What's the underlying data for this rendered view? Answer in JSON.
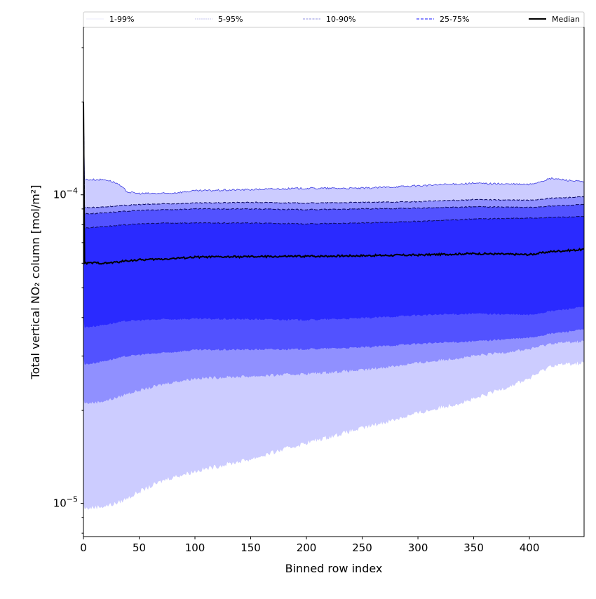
{
  "chart_data": {
    "type": "area",
    "title": "",
    "xlabel": "Binned row index",
    "ylabel": "Total vertical NO₂ column [mol/m²]",
    "xlim": [
      0,
      449
    ],
    "ylim": [
      7.8e-06,
      0.000349
    ],
    "yscale": "log",
    "grid": false,
    "legend_placement": "top (above axes, full width)",
    "x_ticks": [
      0,
      50,
      100,
      150,
      200,
      250,
      300,
      350,
      400
    ],
    "y_ticks": [
      {
        "value": 1e-05,
        "base": "10",
        "exp": "−5"
      },
      {
        "value": 0.0001,
        "base": "10",
        "exp": "−4"
      }
    ],
    "legend": [
      {
        "label": "1-99%",
        "color": "#d8d8f8"
      },
      {
        "label": "5-95%",
        "color": "#b0b0e8"
      },
      {
        "label": "10-90%",
        "color": "#9090e0"
      },
      {
        "label": "25-75%",
        "color": "#6060ff"
      },
      {
        "label": "Median",
        "color": "#000000"
      }
    ],
    "x": [
      0,
      1,
      10,
      20,
      30,
      40,
      50,
      75,
      100,
      150,
      200,
      250,
      300,
      350,
      400,
      420,
      449
    ],
    "series": [
      {
        "name": "p99",
        "values": [
          0.0002,
          0.000112,
          0.000112,
          0.000112,
          0.000109,
          0.000102,
          0.000101,
          0.000101,
          0.000103,
          0.000104,
          0.000105,
          0.000105,
          0.000107,
          0.000109,
          0.000108,
          0.000113,
          0.00011
        ]
      },
      {
        "name": "p95",
        "values": [
          0.0002,
          9.1e-05,
          9.1e-05,
          9.15e-05,
          9.2e-05,
          9.25e-05,
          9.3e-05,
          9.35e-05,
          9.4e-05,
          9.45e-05,
          9.4e-05,
          9.45e-05,
          9.5e-05,
          9.65e-05,
          9.6e-05,
          9.75e-05,
          9.85e-05
        ]
      },
      {
        "name": "p90",
        "values": [
          0.0002,
          8.68e-05,
          8.7e-05,
          8.75e-05,
          8.8e-05,
          8.85e-05,
          8.9e-05,
          8.95e-05,
          9e-05,
          9e-05,
          8.95e-05,
          9e-05,
          9.05e-05,
          9.15e-05,
          9.1e-05,
          9.2e-05,
          9.3e-05
        ]
      },
      {
        "name": "p75",
        "values": [
          0.0002,
          7.8e-05,
          7.85e-05,
          7.9e-05,
          7.95e-05,
          8e-05,
          8.05e-05,
          8.1e-05,
          8.1e-05,
          8.1e-05,
          8.05e-05,
          8.1e-05,
          8.2e-05,
          8.35e-05,
          8.4e-05,
          8.45e-05,
          8.5e-05
        ]
      },
      {
        "name": "median",
        "values": [
          0.0002,
          6e-05,
          6.02e-05,
          6e-05,
          6.05e-05,
          6.12e-05,
          6.15e-05,
          6.2e-05,
          6.28e-05,
          6.3e-05,
          6.32e-05,
          6.35e-05,
          6.38e-05,
          6.45e-05,
          6.4e-05,
          6.55e-05,
          6.65e-05
        ]
      },
      {
        "name": "p25",
        "values": [
          4e-05,
          3.72e-05,
          3.75e-05,
          3.8e-05,
          3.85e-05,
          3.9e-05,
          3.92e-05,
          3.95e-05,
          3.96e-05,
          3.95e-05,
          3.93e-05,
          3.98e-05,
          4.07e-05,
          4.12e-05,
          4.08e-05,
          4.2e-05,
          4.33e-05
        ]
      },
      {
        "name": "p10",
        "values": [
          3e-05,
          2.82e-05,
          2.85e-05,
          2.9e-05,
          2.95e-05,
          3e-05,
          3.03e-05,
          3.08e-05,
          3.14e-05,
          3.15e-05,
          3.16e-05,
          3.2e-05,
          3.29e-05,
          3.35e-05,
          3.44e-05,
          3.55e-05,
          3.66e-05
        ]
      },
      {
        "name": "p5",
        "values": [
          2.2e-05,
          2.11e-05,
          2.12e-05,
          2.15e-05,
          2.2e-05,
          2.27e-05,
          2.32e-05,
          2.45e-05,
          2.54e-05,
          2.58e-05,
          2.63e-05,
          2.7e-05,
          2.85e-05,
          3e-05,
          3.16e-05,
          3.3e-05,
          3.35e-05
        ]
      },
      {
        "name": "p1",
        "values": [
          1e-05,
          9.6e-06,
          9.7e-06,
          9.8e-06,
          1e-05,
          1.04e-05,
          1.09e-05,
          1.2e-05,
          1.27e-05,
          1.39e-05,
          1.57e-05,
          1.75e-05,
          1.96e-05,
          2.17e-05,
          2.54e-05,
          2.8e-05,
          2.85e-05
        ]
      }
    ],
    "band_colors": [
      "#ccccff",
      "#9090ff",
      "#5252ff",
      "#2a2aff"
    ],
    "line_colors": {
      "p99": "#3a3ae0",
      "dashed": "#10106a",
      "median": "#000000"
    }
  }
}
